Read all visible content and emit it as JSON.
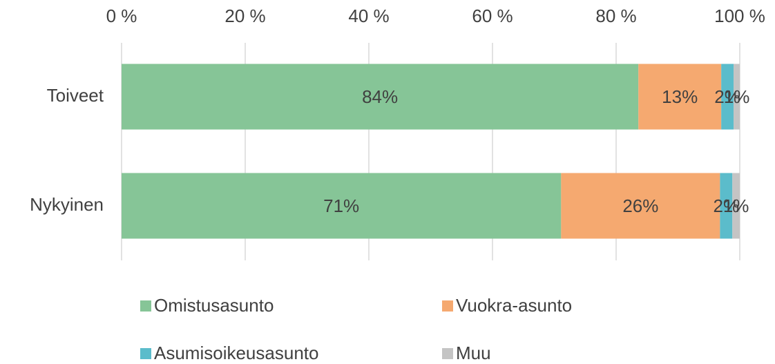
{
  "chart_data": {
    "type": "stacked_bar_horizontal",
    "categories": [
      "Toiveet",
      "Nykyinen"
    ],
    "series": [
      {
        "name": "Omistusasunto",
        "color": "#86c597",
        "values": [
          83.6,
          71.1
        ],
        "value_labels": [
          "84%",
          "71%"
        ]
      },
      {
        "name": "Vuokra-asunto",
        "color": "#f5a970",
        "values": [
          13.4,
          25.7
        ],
        "value_labels": [
          "13%",
          "26%"
        ]
      },
      {
        "name": "Asumisoikeusasunto",
        "color": "#5bbccb",
        "values": [
          2.0,
          2.0
        ],
        "value_labels": [
          "2%",
          "2%"
        ]
      },
      {
        "name": "Muu",
        "color": "#c4c4c4",
        "values": [
          1.0,
          1.2
        ],
        "value_labels": [
          "1%",
          "1%"
        ]
      }
    ],
    "xlim": [
      0,
      100
    ],
    "xticks": [
      {
        "value": 0,
        "label": "0 %"
      },
      {
        "value": 20,
        "label": "20 %"
      },
      {
        "value": 40,
        "label": "40 %"
      },
      {
        "value": 60,
        "label": "60 %"
      },
      {
        "value": 80,
        "label": "80 %"
      },
      {
        "value": 100,
        "label": "100 %"
      }
    ],
    "grid": true
  }
}
